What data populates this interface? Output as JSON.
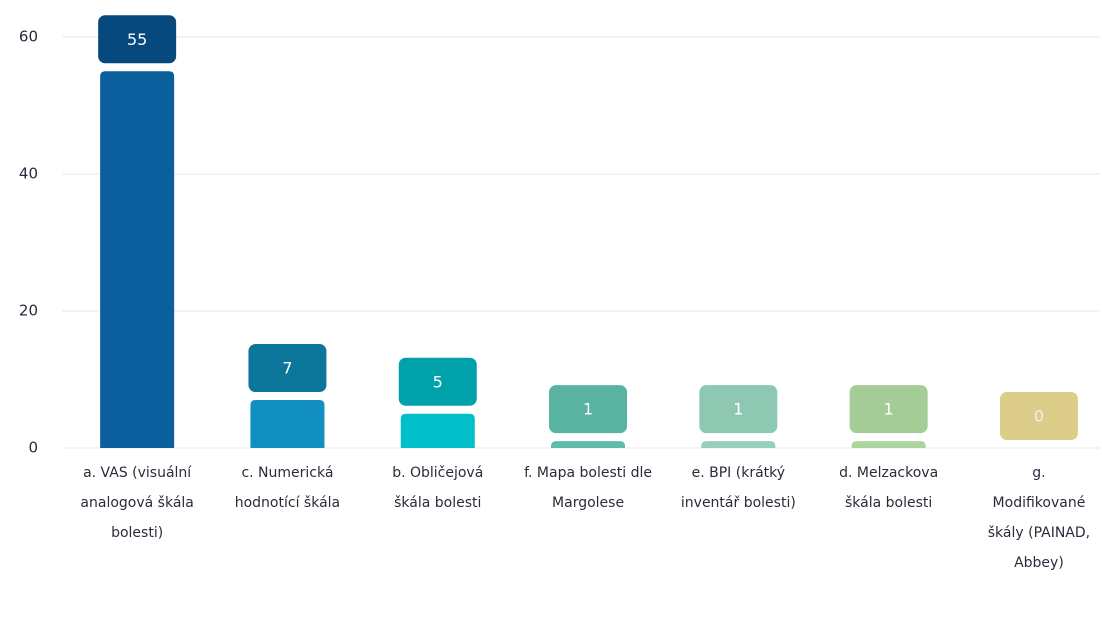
{
  "chart_data": {
    "type": "bar",
    "categories": [
      "a. VAS (visuální analogová škála bolesti)",
      "c. Numerická hodnotící škála",
      "b. Obličejová škála bolesti",
      "f. Mapa bolesti dle Margolese",
      "e. BPI (krátký inventář bolesti)",
      "d. Melzackova škála bolesti",
      "g. Modifikované škály (PAINAD, Abbey)"
    ],
    "values": [
      55,
      7,
      5,
      1,
      1,
      1,
      0
    ],
    "colors": [
      "#0a5f9c",
      "#118fc0",
      "#00bfc9",
      "#5ebdaa",
      "#97cfba",
      "#acd49f",
      "#e4d28f"
    ],
    "label_colors": [
      "#07487d",
      "#0b7699",
      "#00a1ab",
      "#58b3a0",
      "#8fc8b2",
      "#a4cc97",
      "#dccd8a"
    ],
    "ylim": [
      0,
      60
    ],
    "yticks": [
      0,
      20,
      40,
      60
    ],
    "grid": true
  }
}
